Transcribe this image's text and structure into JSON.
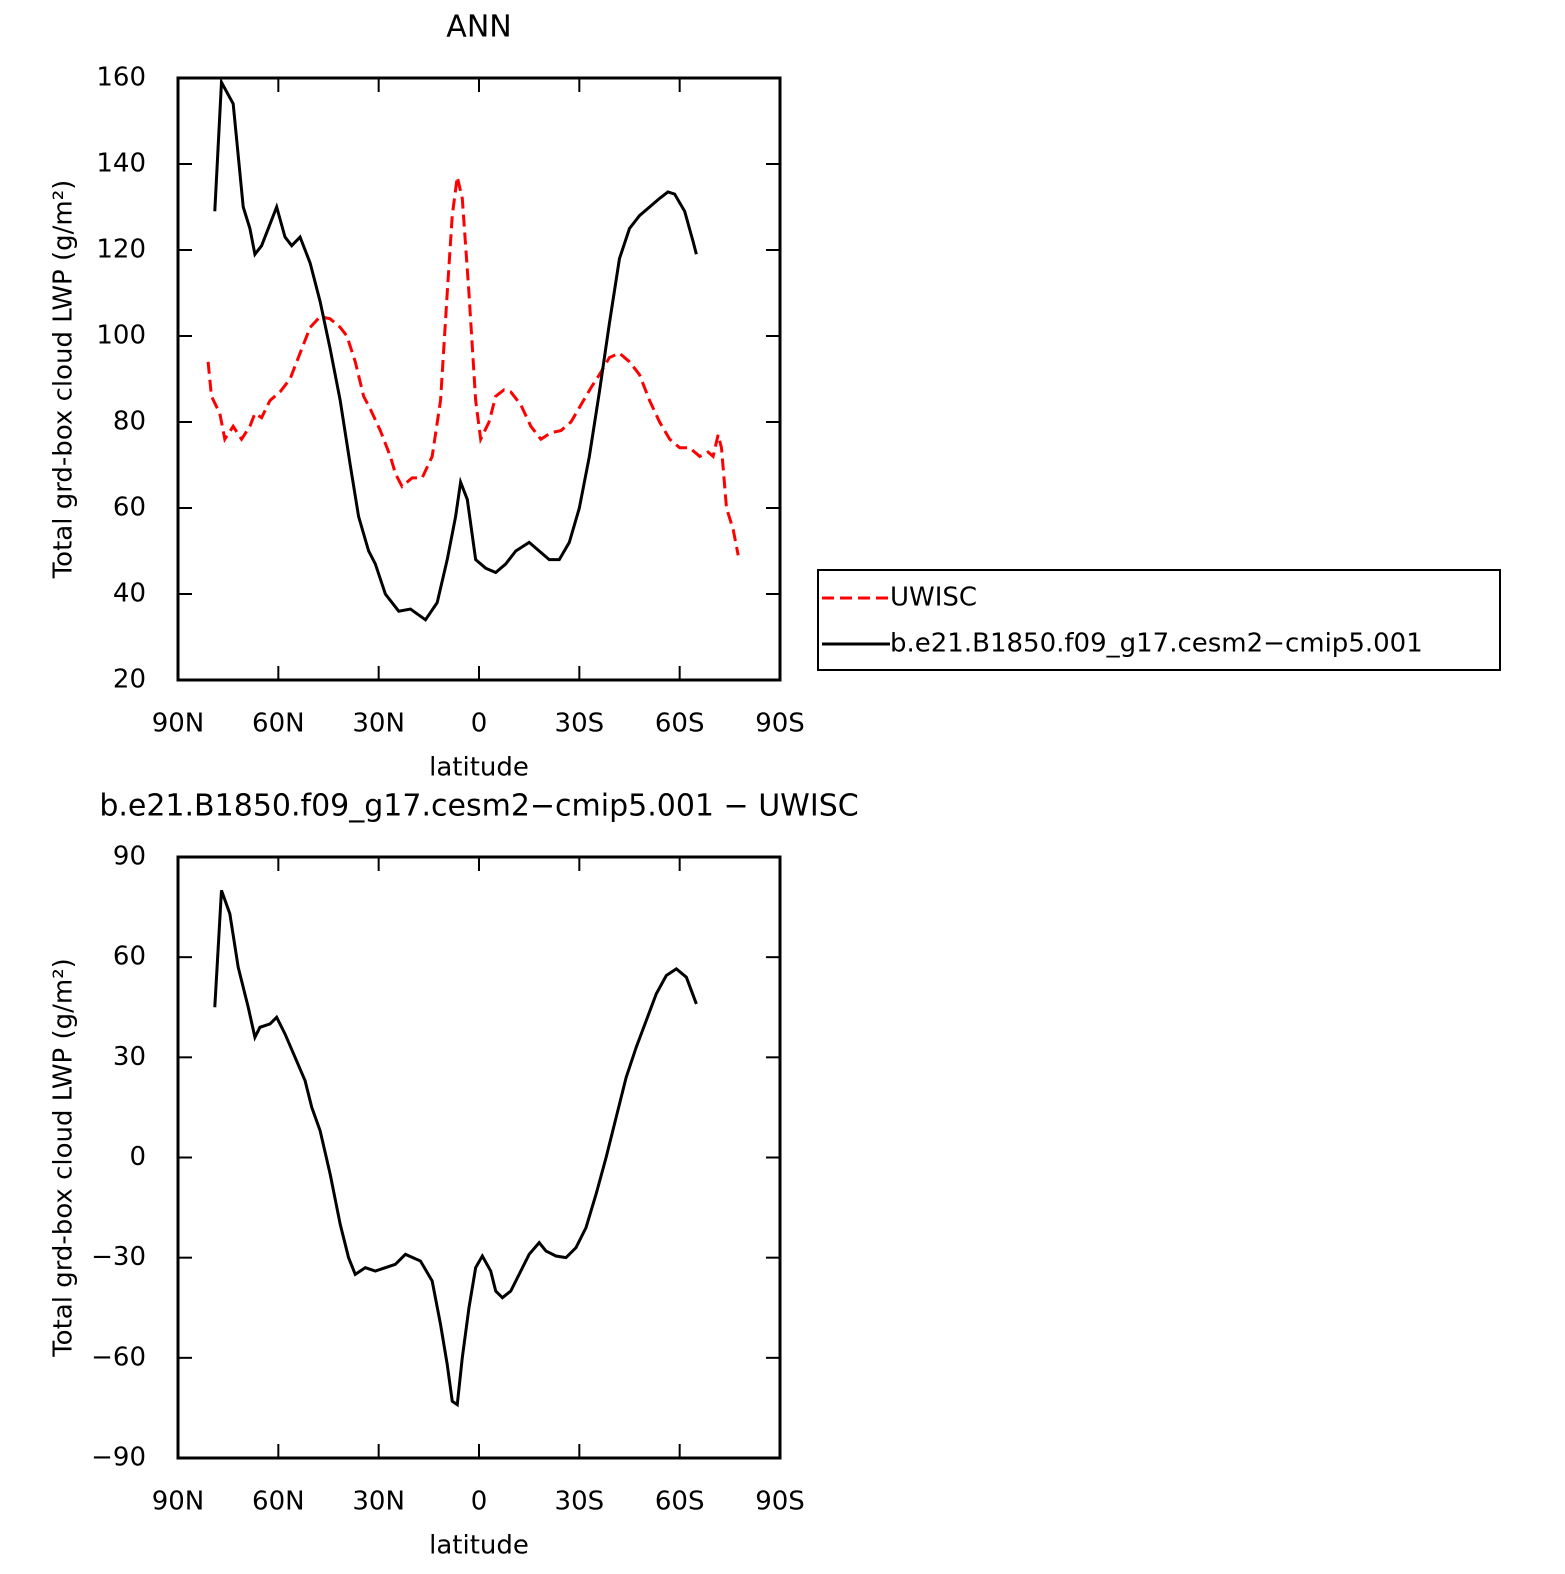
{
  "chart_data": [
    {
      "type": "line",
      "title": "ANN",
      "x_label": "latitude",
      "y_label": "Total grd-box cloud LWP (g/m²)",
      "xlim": [
        90,
        -90
      ],
      "xticks": [
        {
          "value": 90,
          "label": "90N"
        },
        {
          "value": 60,
          "label": "60N"
        },
        {
          "value": 30,
          "label": "30N"
        },
        0,
        {
          "value": -30,
          "label": "30S"
        },
        {
          "value": -60,
          "label": "60S"
        },
        {
          "value": -90,
          "label": "90S"
        }
      ],
      "ylim": [
        20,
        160
      ],
      "yticks": [
        20,
        40,
        60,
        80,
        100,
        120,
        140,
        160
      ],
      "legend": "right",
      "series": [
        {
          "name": "UWISC",
          "color": "#ff0000",
          "dashed": true,
          "x": [
            81,
            80,
            77.5,
            76,
            73.5,
            71,
            68.5,
            67,
            65,
            62.5,
            59.5,
            56.5,
            53.5,
            50.5,
            47.5,
            44.5,
            41.5,
            39.5,
            37,
            34.5,
            32.5,
            29.5,
            26.5,
            25,
            23,
            20,
            17,
            14,
            11.5,
            9.5,
            8,
            6.5,
            5,
            3,
            1,
            -0.5,
            -3,
            -5,
            -7.5,
            -9.5,
            -12.5,
            -15.5,
            -18.5,
            -21.5,
            -24.5,
            -27.5,
            -30.5,
            -33.5,
            -36,
            -39,
            -42,
            -45,
            -48,
            -51,
            -54,
            -57,
            -60,
            -63,
            -66,
            -68.5,
            -70,
            -71.5,
            -72.5,
            -74,
            -76,
            -77.5
          ],
          "values": [
            94,
            86,
            82,
            76,
            79,
            76,
            79,
            82,
            81,
            85,
            87,
            90,
            96,
            102,
            104.5,
            104,
            102,
            100,
            94,
            86,
            83,
            78,
            72,
            68,
            65,
            67,
            67,
            72,
            85,
            110,
            128,
            137,
            132,
            110,
            85,
            76,
            80,
            86,
            87.5,
            87,
            84,
            79,
            76,
            77.5,
            78,
            80,
            84,
            88,
            91,
            95,
            96,
            94,
            91,
            85,
            80,
            76,
            74,
            74,
            72,
            73,
            72,
            77,
            74,
            60,
            55,
            49
          ]
        },
        {
          "name": "b.e21.B1850.f09_g17.cesm2−cmip5.001",
          "color": "#000000",
          "dashed": false,
          "x": [
            79,
            77,
            73.5,
            70.5,
            68.5,
            67,
            65,
            62.5,
            60.5,
            58,
            56,
            53.5,
            50.5,
            47.5,
            44.5,
            41.5,
            38.5,
            36,
            33,
            31,
            28,
            24,
            20.5,
            16,
            12.5,
            9.5,
            7,
            5.5,
            3.5,
            1,
            -2,
            -5,
            -8,
            -11,
            -15,
            -18,
            -21,
            -24,
            -27,
            -30,
            -33,
            -36,
            -39,
            -42,
            -45,
            -48,
            -51,
            -54,
            -56.5,
            -58.5,
            -61.5,
            -64,
            -65
          ],
          "values": [
            129,
            159,
            154,
            130,
            125,
            119,
            121,
            126,
            130,
            123,
            121,
            123,
            117,
            108,
            97,
            85,
            70,
            58,
            50,
            47,
            40,
            36,
            36.5,
            34,
            38,
            48,
            58,
            66,
            62,
            48,
            46,
            45,
            47,
            50,
            52,
            50,
            48,
            48,
            52,
            60,
            72,
            87,
            103,
            118,
            125,
            128,
            130,
            132,
            133.5,
            133,
            129,
            122,
            119
          ]
        }
      ]
    },
    {
      "type": "line",
      "title": "b.e21.B1850.f09_g17.cesm2−cmip5.001 − UWISC",
      "x_label": "latitude",
      "y_label": "Total grd-box cloud LWP (g/m²)",
      "xlim": [
        90,
        -90
      ],
      "xticks": [
        {
          "value": 90,
          "label": "90N"
        },
        {
          "value": 60,
          "label": "60N"
        },
        {
          "value": 30,
          "label": "30N"
        },
        0,
        {
          "value": -30,
          "label": "30S"
        },
        {
          "value": -60,
          "label": "60S"
        },
        {
          "value": -90,
          "label": "90S"
        }
      ],
      "ylim": [
        -90,
        90
      ],
      "yticks": [
        {
          "value": -90,
          "label": "−90"
        },
        {
          "value": -60,
          "label": "−60"
        },
        {
          "value": -30,
          "label": "−30"
        },
        0,
        30,
        60,
        90
      ],
      "series": [
        {
          "color": "#000000",
          "dashed": false,
          "x": [
            79,
            77,
            74.5,
            72,
            69,
            67,
            65.5,
            62.5,
            60.5,
            58,
            55,
            52,
            50,
            47.5,
            44.5,
            41.5,
            39,
            37,
            34,
            31,
            28,
            25,
            22,
            17.5,
            14,
            11.5,
            9.5,
            8,
            6.5,
            5,
            3,
            1,
            -1,
            -3.5,
            -5,
            -7,
            -9.5,
            -12,
            -15,
            -18,
            -20,
            -23,
            -26,
            -29,
            -32,
            -35,
            -38,
            -41,
            -44,
            -47,
            -50,
            -53,
            -56,
            -59,
            -62,
            -65
          ],
          "values": [
            45,
            80,
            73,
            57,
            45,
            36,
            39,
            40,
            42,
            37,
            30,
            23,
            15,
            8,
            -5,
            -20,
            -30,
            -35,
            -33,
            -34,
            -33,
            -32,
            -29,
            -31,
            -37,
            -50,
            -62,
            -73,
            -74,
            -60,
            -45,
            -33,
            -29.5,
            -34,
            -40,
            -42,
            -40,
            -35,
            -29,
            -25.5,
            -28,
            -29.5,
            -30,
            -27,
            -21,
            -11,
            0,
            12,
            24,
            33,
            41,
            49,
            54.5,
            56.5,
            54,
            46
          ]
        }
      ]
    }
  ]
}
